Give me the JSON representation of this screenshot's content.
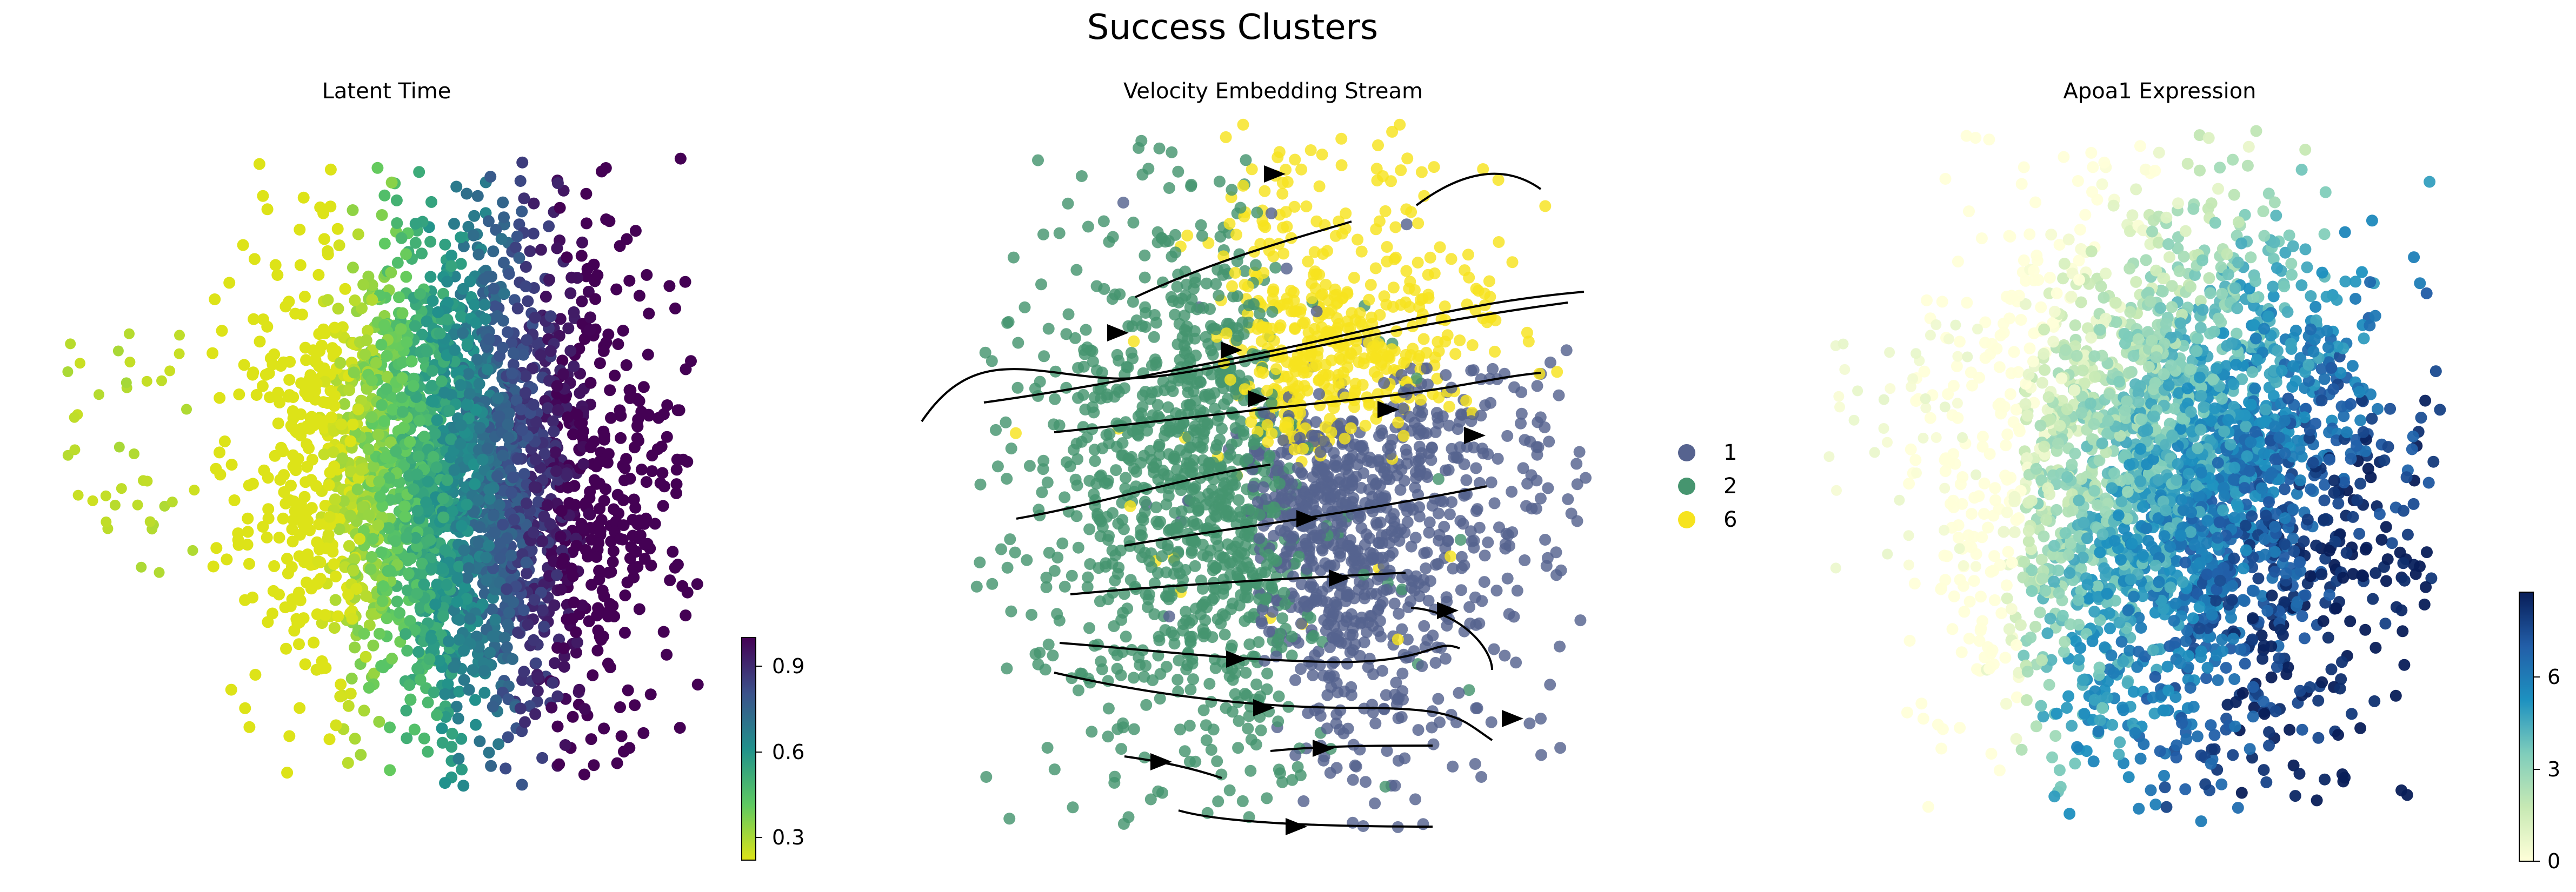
{
  "figure": {
    "title": "Success Clusters"
  },
  "chart_data": [
    {
      "type": "scatter",
      "title": "Latent Time",
      "xlabel": "",
      "ylabel": "",
      "axes_visible": false,
      "color_variable": "latent time",
      "colormap": "viridis_r",
      "colorbar": {
        "ticks": [
          "0.3",
          "0.6",
          "0.9"
        ],
        "range": [
          0.2,
          1.0
        ]
      },
      "trend": "latent time increases from left (~0.2, yellow) to right (~1.0, dark purple)"
    },
    {
      "type": "scatter",
      "title": "Velocity Embedding Stream",
      "xlabel": "",
      "ylabel": "",
      "axes_visible": false,
      "overlay": "velocity streamlines with arrowheads pointing left to right",
      "legend_position": "right",
      "series": [
        {
          "name": "1",
          "color": "#56638f"
        },
        {
          "name": "2",
          "color": "#46956f"
        },
        {
          "name": "6",
          "color": "#f6e31e"
        }
      ]
    },
    {
      "type": "scatter",
      "title": "Apoa1 Expression",
      "xlabel": "",
      "ylabel": "",
      "axes_visible": false,
      "color_variable": "Apoa1 expression",
      "colormap": "YlGnBu",
      "colorbar": {
        "ticks": [
          "0",
          "3",
          "6"
        ],
        "range": [
          0,
          7
        ]
      },
      "trend": "expression low (pale yellow) on left and top, high (dark navy) in lower-right core"
    }
  ]
}
